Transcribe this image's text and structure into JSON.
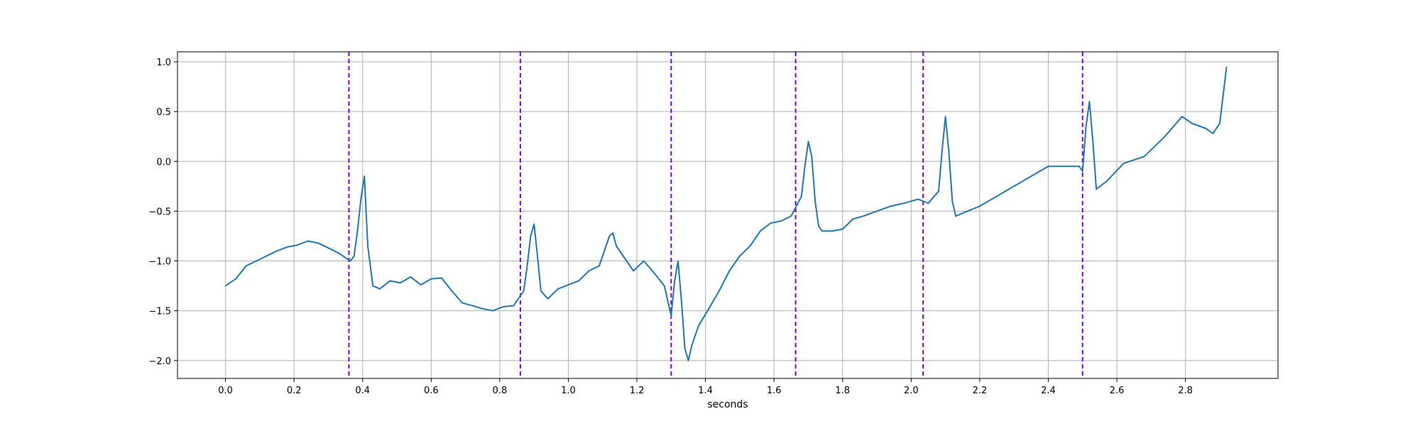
{
  "chart_data": {
    "type": "line",
    "title": "",
    "xlabel": "seconds",
    "ylabel": "",
    "xlim": [
      -0.14,
      3.07
    ],
    "ylim": [
      -2.18,
      1.1
    ],
    "grid": true,
    "xticks": [
      "0.0",
      "0.2",
      "0.4",
      "0.6",
      "0.8",
      "1.0",
      "1.2",
      "1.4",
      "1.6",
      "1.8",
      "2.0",
      "2.2",
      "2.4",
      "2.6",
      "2.8"
    ],
    "yticks": [
      "-2.0",
      "-1.5",
      "-1.0",
      "-0.5",
      "0.0",
      "0.5",
      "1.0"
    ],
    "line_color": "#1f77b4",
    "marker_color": "#7b00d4",
    "vertical_markers": [
      0.36,
      0.86,
      1.3,
      1.663,
      2.035,
      2.5
    ],
    "series": [
      {
        "x": [
          0.0,
          0.03,
          0.06,
          0.09,
          0.12,
          0.15,
          0.18,
          0.21,
          0.24,
          0.27,
          0.3,
          0.33,
          0.355,
          0.365,
          0.375,
          0.385,
          0.395,
          0.405,
          0.415,
          0.43,
          0.45,
          0.48,
          0.51,
          0.54,
          0.57,
          0.6,
          0.63,
          0.66,
          0.69,
          0.72,
          0.75,
          0.78,
          0.81,
          0.84,
          0.87,
          0.88,
          0.89,
          0.9,
          0.91,
          0.92,
          0.94,
          0.97,
          1.0,
          1.03,
          1.06,
          1.09,
          1.12,
          1.13,
          1.14,
          1.16,
          1.19,
          1.22,
          1.25,
          1.28,
          1.3,
          1.31,
          1.32,
          1.33,
          1.34,
          1.35,
          1.36,
          1.38,
          1.41,
          1.44,
          1.47,
          1.5,
          1.53,
          1.56,
          1.59,
          1.62,
          1.65,
          1.68,
          1.69,
          1.7,
          1.71,
          1.72,
          1.73,
          1.74,
          1.77,
          1.8,
          1.83,
          1.86,
          1.9,
          1.94,
          1.98,
          2.02,
          2.05,
          2.08,
          2.09,
          2.1,
          2.11,
          2.12,
          2.13,
          2.15,
          2.2,
          2.25,
          2.3,
          2.35,
          2.4,
          2.45,
          2.49,
          2.5,
          2.51,
          2.52,
          2.53,
          2.54,
          2.57,
          2.62,
          2.68,
          2.74,
          2.79,
          2.82,
          2.86,
          2.88,
          2.9,
          2.92
        ],
        "y": [
          -1.25,
          -1.18,
          -1.05,
          -1.0,
          -0.95,
          -0.9,
          -0.86,
          -0.84,
          -0.8,
          -0.82,
          -0.87,
          -0.92,
          -0.98,
          -1.0,
          -0.95,
          -0.7,
          -0.38,
          -0.15,
          -0.85,
          -1.25,
          -1.28,
          -1.2,
          -1.22,
          -1.16,
          -1.24,
          -1.18,
          -1.17,
          -1.3,
          -1.42,
          -1.45,
          -1.48,
          -1.5,
          -1.46,
          -1.45,
          -1.3,
          -1.05,
          -0.75,
          -0.63,
          -0.95,
          -1.3,
          -1.38,
          -1.28,
          -1.24,
          -1.2,
          -1.1,
          -1.05,
          -0.75,
          -0.72,
          -0.85,
          -0.95,
          -1.1,
          -1.0,
          -1.12,
          -1.25,
          -1.55,
          -1.2,
          -1.0,
          -1.4,
          -1.88,
          -2.0,
          -1.85,
          -1.65,
          -1.48,
          -1.3,
          -1.1,
          -0.95,
          -0.85,
          -0.7,
          -0.62,
          -0.6,
          -0.55,
          -0.35,
          -0.05,
          0.2,
          0.05,
          -0.4,
          -0.65,
          -0.7,
          -0.7,
          -0.68,
          -0.58,
          -0.55,
          -0.5,
          -0.45,
          -0.42,
          -0.38,
          -0.42,
          -0.3,
          0.1,
          0.45,
          0.1,
          -0.4,
          -0.55,
          -0.52,
          -0.45,
          -0.35,
          -0.25,
          -0.15,
          -0.05,
          -0.05,
          -0.05,
          -0.1,
          0.35,
          0.6,
          0.2,
          -0.28,
          -0.2,
          -0.02,
          0.05,
          0.25,
          0.45,
          0.38,
          0.33,
          0.28,
          0.38,
          0.95
        ]
      }
    ]
  }
}
